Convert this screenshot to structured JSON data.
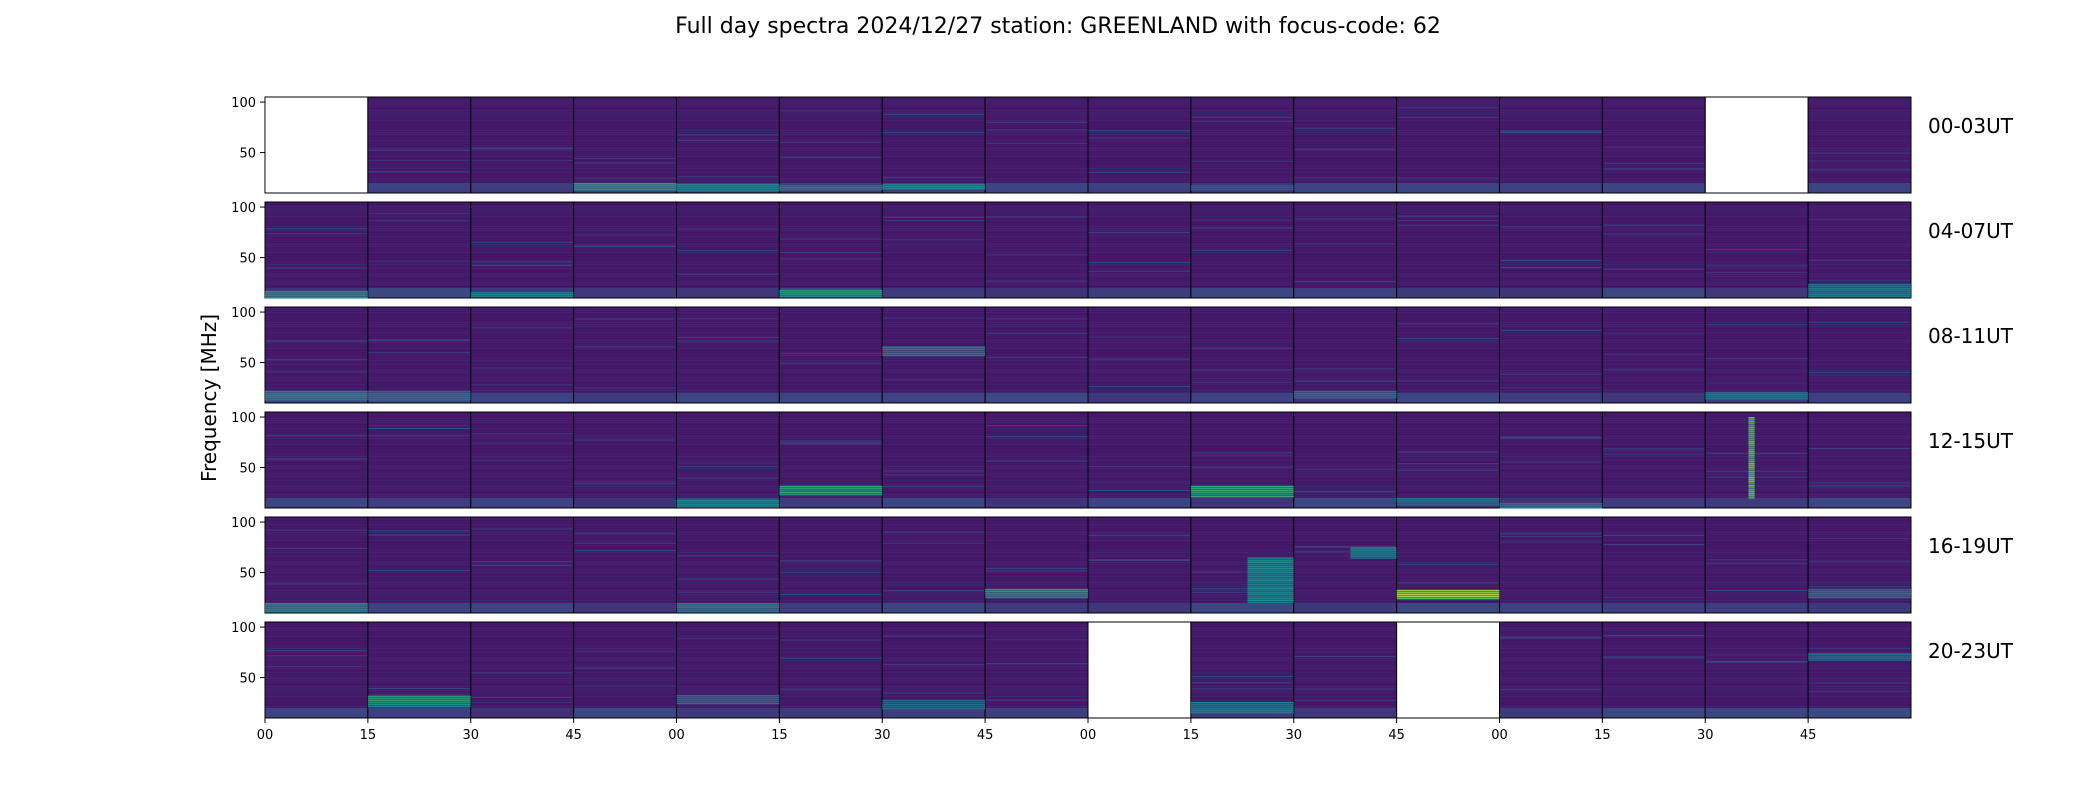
{
  "chart_data": {
    "type": "heatmap",
    "title": "Full day spectra 2024/12/27 station: GREENLAND with focus-code: 62",
    "ylabel": "Frequency [MHz]",
    "xlabel": "",
    "ylim": [
      10,
      105
    ],
    "yticks": [
      "100",
      "50"
    ],
    "ytick_values": [
      100,
      50
    ],
    "xticks": [
      "00",
      "15",
      "30",
      "45",
      "00",
      "15",
      "30",
      "45",
      "00",
      "15",
      "30",
      "45",
      "00",
      "15",
      "30",
      "45"
    ],
    "colormap": "viridis",
    "colors": {
      "low": "#440154",
      "background": "#46186b",
      "mid": "#2a788e",
      "high": "#22a884",
      "peak": "#9fda3a",
      "empty": "#ffffff"
    },
    "panels_per_row": 16,
    "panel_minutes": 15,
    "rows": [
      {
        "label": "00-03UT",
        "empty": [
          0,
          14
        ],
        "events": [
          {
            "panel": 3,
            "f0": 13,
            "f1": 20,
            "intensity": 0.55
          },
          {
            "panel": 4,
            "f0": 13,
            "f1": 19,
            "intensity": 0.5
          },
          {
            "panel": 5,
            "f0": 13,
            "f1": 18,
            "intensity": 0.45
          },
          {
            "panel": 6,
            "f0": 14,
            "f1": 19,
            "intensity": 0.55
          },
          {
            "panel": 9,
            "f0": 14,
            "f1": 18,
            "intensity": 0.35
          }
        ]
      },
      {
        "label": "04-07UT",
        "empty": [],
        "events": [
          {
            "panel": 0,
            "f0": 11,
            "f1": 17,
            "intensity": 0.55
          },
          {
            "panel": 2,
            "f0": 11,
            "f1": 16,
            "intensity": 0.5
          },
          {
            "panel": 5,
            "f0": 12,
            "f1": 18,
            "intensity": 0.6
          },
          {
            "panel": 15,
            "f0": 12,
            "f1": 24,
            "intensity": 0.45
          }
        ]
      },
      {
        "label": "08-11UT",
        "empty": [],
        "events": [
          {
            "panel": 0,
            "f0": 14,
            "f1": 22,
            "intensity": 0.5
          },
          {
            "panel": 1,
            "f0": 14,
            "f1": 22,
            "intensity": 0.4
          },
          {
            "panel": 6,
            "f0": 58,
            "f1": 66,
            "intensity": 0.5
          },
          {
            "panel": 10,
            "f0": 15,
            "f1": 22,
            "intensity": 0.4
          },
          {
            "panel": 14,
            "f0": 15,
            "f1": 21,
            "intensity": 0.45
          }
        ]
      },
      {
        "label": "12-15UT",
        "empty": [],
        "events": [
          {
            "panel": 4,
            "f0": 12,
            "f1": 18,
            "intensity": 0.5
          },
          {
            "panel": 5,
            "f0": 24,
            "f1": 32,
            "intensity": 0.65
          },
          {
            "panel": 9,
            "f0": 22,
            "f1": 32,
            "intensity": 0.65
          },
          {
            "panel": 11,
            "f0": 14,
            "f1": 20,
            "intensity": 0.4
          },
          {
            "panel": 12,
            "f0": 11,
            "f1": 15,
            "intensity": 0.5
          },
          {
            "panel": 14,
            "f0": 20,
            "f1": 100,
            "intensity": 0.8,
            "narrow": true
          }
        ]
      },
      {
        "label": "16-19UT",
        "empty": [],
        "events": [
          {
            "panel": 0,
            "f0": 12,
            "f1": 20,
            "intensity": 0.55
          },
          {
            "panel": 4,
            "f0": 12,
            "f1": 20,
            "intensity": 0.5
          },
          {
            "panel": 7,
            "f0": 25,
            "f1": 34,
            "intensity": 0.6
          },
          {
            "panel": 9,
            "f0": 20,
            "f1": 65,
            "intensity": 0.55,
            "half": true
          },
          {
            "panel": 10,
            "f0": 65,
            "f1": 75,
            "intensity": 0.5,
            "half": true
          },
          {
            "panel": 11,
            "f0": 25,
            "f1": 33,
            "intensity": 0.95
          },
          {
            "panel": 15,
            "f0": 25,
            "f1": 34,
            "intensity": 0.45
          }
        ]
      },
      {
        "label": "20-23UT",
        "empty": [
          8,
          11
        ],
        "events": [
          {
            "panel": 1,
            "f0": 22,
            "f1": 32,
            "intensity": 0.6
          },
          {
            "panel": 4,
            "f0": 25,
            "f1": 33,
            "intensity": 0.45
          },
          {
            "panel": 6,
            "f0": 20,
            "f1": 28,
            "intensity": 0.4
          },
          {
            "panel": 9,
            "f0": 16,
            "f1": 26,
            "intensity": 0.5
          },
          {
            "panel": 15,
            "f0": 68,
            "f1": 74,
            "intensity": 0.4
          }
        ]
      }
    ]
  }
}
